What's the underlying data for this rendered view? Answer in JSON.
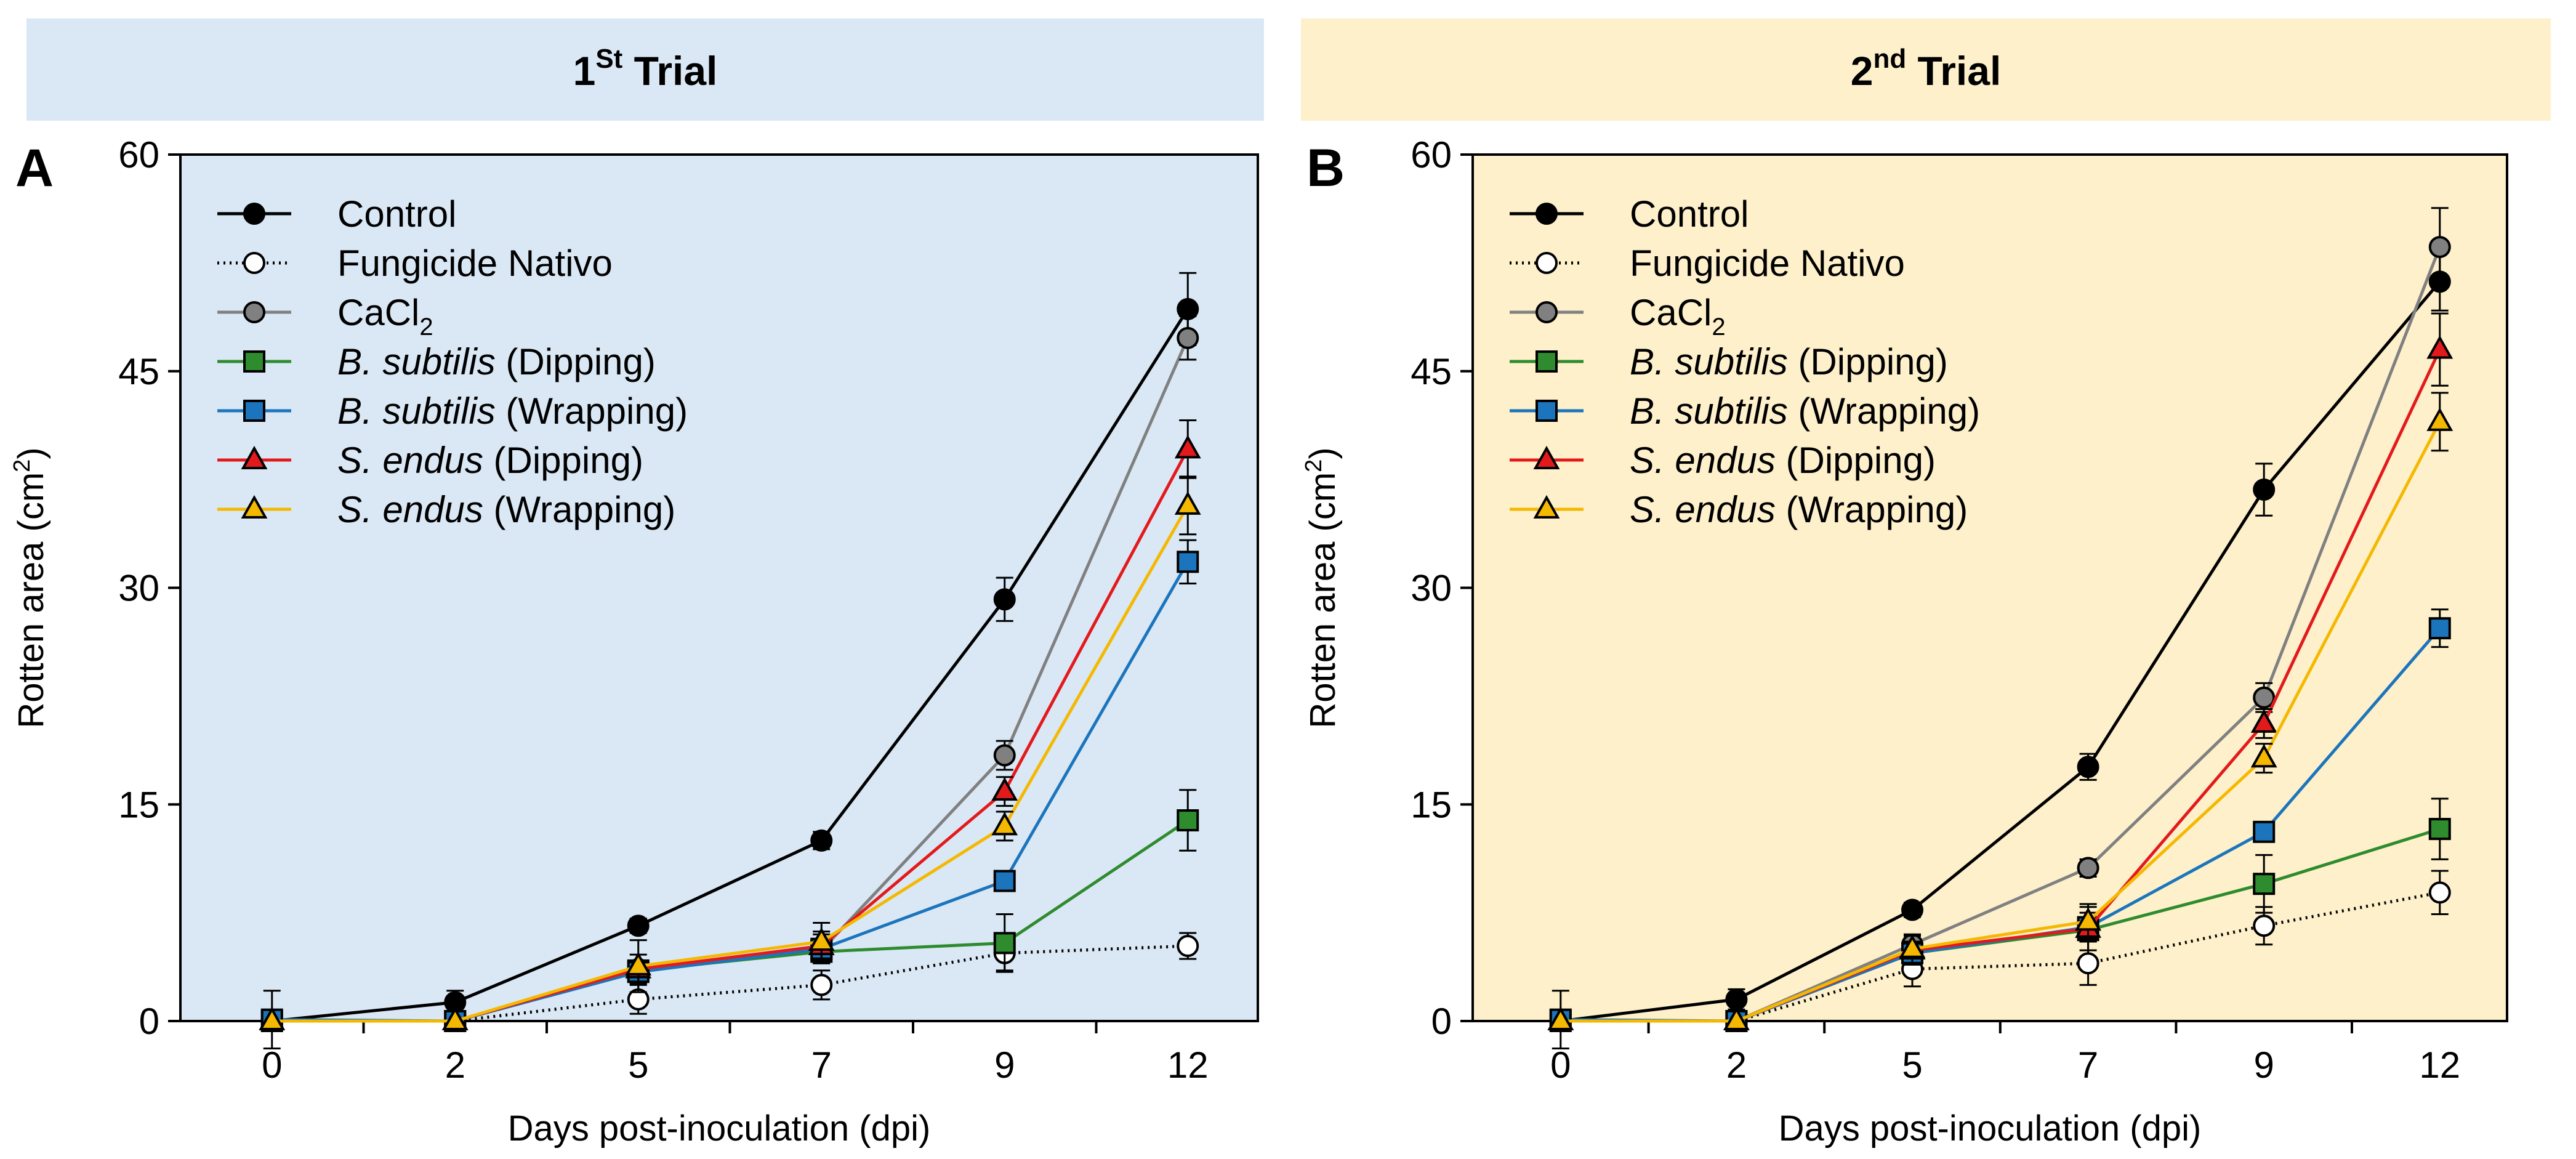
{
  "headers": [
    {
      "base": "1",
      "sup": "St",
      "rest": " Trial",
      "color": "#dae8f5"
    },
    {
      "base": "2",
      "sup": "nd",
      "rest": " Trial",
      "color": "#fdf0cb"
    }
  ],
  "series_styles": [
    {
      "name": "Control",
      "color": "#000000",
      "marker": "circle",
      "fill": "#000000",
      "dash": ""
    },
    {
      "name": "Fungicide Nativo",
      "color": "#000000",
      "marker": "circle",
      "fill": "#ffffff",
      "dash": "dot"
    },
    {
      "name": "CaCl2",
      "color": "#808080",
      "marker": "circle",
      "fill": "#808080",
      "dash": ""
    },
    {
      "name": "B. subtilis (Dipping)",
      "color": "#2e8b2e",
      "marker": "square",
      "fill": "#2e8b2e",
      "dash": ""
    },
    {
      "name": "B. subtilis (Wrapping)",
      "color": "#1c75bc",
      "marker": "square",
      "fill": "#1c75bc",
      "dash": ""
    },
    {
      "name": "S. endus (Dipping)",
      "color": "#e31a1c",
      "marker": "triangle",
      "fill": "#e31a1c",
      "dash": ""
    },
    {
      "name": "S. endus (Wrapping)",
      "color": "#f5b800",
      "marker": "triangle",
      "fill": "#f5b800",
      "dash": ""
    }
  ],
  "chart_data": [
    {
      "type": "line",
      "panel_label": "A",
      "title": "1St Trial",
      "background": "#dae8f5",
      "xlabel": "Days post-inoculation (dpi)",
      "ylabel_main": "Rotten area (cm",
      "ylabel_sup": "2",
      "ylabel_tail": ")",
      "categories": [
        "0",
        "2",
        "5",
        "7",
        "9",
        "12"
      ],
      "yticks": [
        "0",
        "15",
        "30",
        "45",
        "60"
      ],
      "ylim": [
        0,
        60
      ],
      "series": [
        {
          "name": "Control",
          "legend_parts": [
            {
              "t": "Control",
              "i": false
            }
          ],
          "values": [
            0,
            1.3,
            6.6,
            12.5,
            29.2,
            49.3
          ],
          "errors": [
            0,
            0.8,
            0.5,
            0.6,
            1.5,
            2.5
          ]
        },
        {
          "name": "Fungicide Nativo",
          "legend_parts": [
            {
              "t": "Fungicide Nativo",
              "i": false
            }
          ],
          "values": [
            0,
            0,
            1.5,
            2.5,
            4.7,
            5.2
          ],
          "errors": [
            0,
            0,
            1.0,
            1.0,
            1.2,
            0.9
          ]
        },
        {
          "name": "CaCl2",
          "legend_parts": [
            {
              "t": "CaCl",
              "i": false
            },
            {
              "t": "2",
              "sub": true
            }
          ],
          "values": [
            0,
            0,
            3.6,
            4.9,
            18.4,
            47.3
          ],
          "errors": [
            0,
            0,
            0.6,
            0.8,
            1.0,
            1.5
          ]
        },
        {
          "name": "B. subtilis (Dipping)",
          "legend_parts": [
            {
              "t": "B. subtilis",
              "i": true
            },
            {
              "t": " (Dipping)",
              "i": false
            }
          ],
          "values": [
            0,
            0,
            3.5,
            4.8,
            5.4,
            13.9
          ],
          "errors": [
            0,
            0,
            0.6,
            0.8,
            2.0,
            2.1
          ]
        },
        {
          "name": "B. subtilis (Wrapping)",
          "legend_parts": [
            {
              "t": "B. subtilis",
              "i": true
            },
            {
              "t": " (Wrapping)",
              "i": false
            }
          ],
          "values": [
            0.1,
            0,
            3.4,
            5.0,
            9.7,
            31.8
          ],
          "errors": [
            2.0,
            0,
            0.8,
            1.0,
            0.5,
            1.5
          ]
        },
        {
          "name": "S. endus (Dipping)",
          "legend_parts": [
            {
              "t": "S. endus",
              "i": true
            },
            {
              "t": " (Dipping)",
              "i": false
            }
          ],
          "values": [
            0,
            0,
            3.6,
            5.2,
            15.9,
            39.6
          ],
          "errors": [
            0,
            0,
            1.0,
            1.0,
            1.0,
            2.0
          ]
        },
        {
          "name": "S. endus (Wrapping)",
          "legend_parts": [
            {
              "t": "S. endus",
              "i": true
            },
            {
              "t": " (Wrapping)",
              "i": false
            }
          ],
          "values": [
            0,
            0,
            3.8,
            5.5,
            13.5,
            35.7
          ],
          "errors": [
            0,
            0,
            1.8,
            1.3,
            1.0,
            2.0
          ]
        }
      ]
    },
    {
      "type": "line",
      "panel_label": "B",
      "title": "2nd Trial",
      "background": "#fdf0cb",
      "xlabel": "Days post-inoculation (dpi)",
      "ylabel_main": "Rotten area (cm",
      "ylabel_sup": "2",
      "ylabel_tail": ")",
      "categories": [
        "0",
        "2",
        "5",
        "7",
        "9",
        "12"
      ],
      "yticks": [
        "0",
        "15",
        "30",
        "45",
        "60"
      ],
      "ylim": [
        0,
        60
      ],
      "series": [
        {
          "name": "Control",
          "legend_parts": [
            {
              "t": "Control",
              "i": false
            }
          ],
          "values": [
            0,
            1.5,
            7.7,
            17.6,
            36.8,
            51.2
          ],
          "errors": [
            0,
            0.7,
            0.5,
            0.9,
            1.8,
            2.0
          ]
        },
        {
          "name": "Fungicide Nativo",
          "legend_parts": [
            {
              "t": "Fungicide Nativo",
              "i": false
            }
          ],
          "values": [
            0,
            0,
            3.6,
            4.0,
            6.6,
            8.9
          ],
          "errors": [
            0,
            0,
            1.2,
            1.5,
            1.3,
            1.5
          ]
        },
        {
          "name": "CaCl2",
          "legend_parts": [
            {
              "t": "CaCl",
              "i": false
            },
            {
              "t": "2",
              "sub": true
            }
          ],
          "values": [
            0,
            0,
            5.3,
            10.6,
            22.4,
            53.6
          ],
          "errors": [
            0,
            0,
            0.6,
            0.6,
            1.0,
            2.7
          ]
        },
        {
          "name": "B. subtilis (Dipping)",
          "legend_parts": [
            {
              "t": "B. subtilis",
              "i": true
            },
            {
              "t": " (Dipping)",
              "i": false
            }
          ],
          "values": [
            0,
            0,
            4.7,
            6.3,
            9.5,
            13.3
          ],
          "errors": [
            0,
            0,
            0.6,
            0.8,
            2.0,
            2.1
          ]
        },
        {
          "name": "B. subtilis (Wrapping)",
          "legend_parts": [
            {
              "t": "B. subtilis",
              "i": true
            },
            {
              "t": " (Wrapping)",
              "i": false
            }
          ],
          "values": [
            0.1,
            0,
            4.7,
            6.5,
            13.1,
            27.2
          ],
          "errors": [
            2.0,
            0,
            0.8,
            1.0,
            0.5,
            1.3
          ]
        },
        {
          "name": "S. endus (Dipping)",
          "legend_parts": [
            {
              "t": "S. endus",
              "i": true
            },
            {
              "t": " (Dipping)",
              "i": false
            }
          ],
          "values": [
            0,
            0,
            4.9,
            6.4,
            20.6,
            46.5
          ],
          "errors": [
            0,
            0,
            1.0,
            1.5,
            1.0,
            2.5
          ]
        },
        {
          "name": "S. endus (Wrapping)",
          "legend_parts": [
            {
              "t": "S. endus",
              "i": true
            },
            {
              "t": " (Wrapping)",
              "i": false
            }
          ],
          "values": [
            0,
            0,
            5.0,
            6.9,
            18.2,
            41.5
          ],
          "errors": [
            0,
            0,
            1.0,
            1.2,
            1.0,
            2.0
          ]
        }
      ]
    }
  ]
}
